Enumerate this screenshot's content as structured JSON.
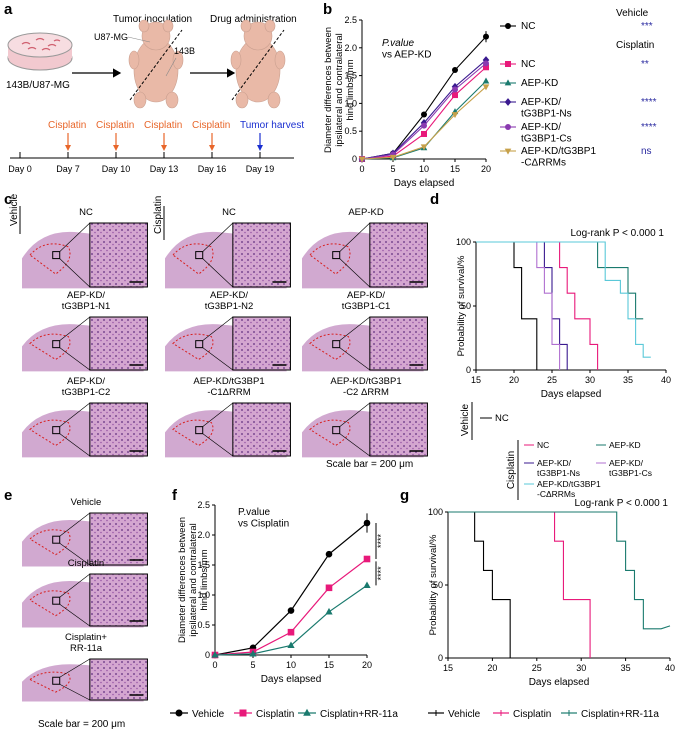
{
  "panel_letters": [
    "a",
    "b",
    "c",
    "d",
    "e",
    "f",
    "g"
  ],
  "colors": {
    "nc": "#000000",
    "cisplatin_nc": "#e8197a",
    "aepkd": "#1a7a6e",
    "ns": "#3a1a8f",
    "cs": "#8a3ab0",
    "crrm": "#c7a14a",
    "tumor_outline": "#d82020",
    "cisplatin_arrow": "#e8662a",
    "harvest_arrow": "#1a2fd0",
    "sig_blue": "#2a2aa0",
    "tissue": "#c28cc0"
  },
  "panel_a": {
    "dish_label": "143B/U87-MG",
    "inoculation_title": "Tumor inoculation",
    "drug_title": "Drug administration",
    "u87_label": "U87-MG",
    "b143_label": "143B",
    "cisplatin_label": "Cisplatin",
    "harvest_label": "Tumor harvest",
    "days": [
      "Day 0",
      "Day 7",
      "Day 10",
      "Day 13",
      "Day 16",
      "Day 19"
    ]
  },
  "panel_c": {
    "vehicle_label": "Vehicle",
    "cisplatin_label": "Cisplatin",
    "tiles": [
      "NC",
      "NC",
      "AEP-KD",
      "AEP-KD/\ntG3BP1-N1",
      "AEP-KD/\ntG3BP1-N2",
      "AEP-KD/\ntG3BP1-C1",
      "AEP-KD/\ntG3BP1-C2",
      "AEP-KD/tG3BP1\n-C1ΔRRM",
      "AEP-KD/tG3BP1\n-C2 ΔRRM"
    ],
    "scale_bar": "Scale bar = 200 μm"
  },
  "panel_e": {
    "tiles": [
      "Vehicle",
      "Cisplatin",
      "Cisplatin+\nRR-11a"
    ],
    "scale_bar": "Scale bar = 200 μm"
  },
  "chart_data": [
    {
      "id": "b",
      "type": "line",
      "xlabel": "Days elapsed",
      "ylabel": "Diameter differences between\nipsilateral and contralateral\nhind limbs/mm",
      "annotation": "P.value\nvs AEP-KD",
      "xlim": [
        0,
        20
      ],
      "ylim": [
        0,
        2.5
      ],
      "xticks": [
        "0",
        "5",
        "10",
        "15",
        "20"
      ],
      "yticks": [
        "0",
        "0.5",
        "1.0",
        "1.5",
        "2.0",
        "2.5"
      ],
      "x": [
        0,
        5,
        10,
        15,
        20
      ],
      "legend_group_vehicle": "Vehicle",
      "legend_group_cisplatin": "Cisplatin",
      "series": [
        {
          "name": "NC",
          "group": "Vehicle",
          "values": [
            0,
            0.1,
            0.8,
            1.6,
            2.2
          ],
          "sig": "***",
          "marker": "circle",
          "color": "#000000"
        },
        {
          "name": "NC",
          "group": "Cisplatin",
          "values": [
            0,
            0.05,
            0.45,
            1.15,
            1.65
          ],
          "sig": "**",
          "marker": "square",
          "color": "#e8197a"
        },
        {
          "name": "AEP-KD",
          "group": "Cisplatin",
          "values": [
            0,
            0.02,
            0.2,
            0.85,
            1.4
          ],
          "sig": "",
          "marker": "triangle",
          "color": "#1a7a6e"
        },
        {
          "name": "AEP-KD/\ntG3BP1-Ns",
          "group": "Cisplatin",
          "values": [
            0,
            0.1,
            0.65,
            1.3,
            1.78
          ],
          "sig": "****",
          "marker": "diamond",
          "color": "#3a1a8f"
        },
        {
          "name": "AEP-KD/\ntG3BP1-Cs",
          "group": "Cisplatin",
          "values": [
            0,
            0.08,
            0.6,
            1.25,
            1.72
          ],
          "sig": "****",
          "marker": "circle",
          "color": "#8a3ab0"
        },
        {
          "name": "AEP-KD/tG3BP1\n-CΔRRMs",
          "group": "Cisplatin",
          "values": [
            0,
            0.03,
            0.22,
            0.8,
            1.3
          ],
          "sig": "ns",
          "marker": "triangle-down",
          "color": "#c7a14a"
        }
      ]
    },
    {
      "id": "d",
      "type": "line",
      "xlabel": "Days elapsed",
      "ylabel": "Probability of survival/%",
      "annotation": "Log-rank P < 0.000 1",
      "xlim": [
        15,
        40
      ],
      "ylim": [
        0,
        100
      ],
      "xticks": [
        "15",
        "20",
        "25",
        "30",
        "35",
        "40"
      ],
      "yticks": [
        "0",
        "50",
        "100"
      ],
      "vehicle_label": "Vehicle",
      "cisplatin_label": "Cisplatin",
      "series": [
        {
          "name": "NC",
          "group": "Vehicle",
          "color": "#000000",
          "steps": [
            [
              15,
              100
            ],
            [
              20,
              100
            ],
            [
              20,
              80
            ],
            [
              21,
              80
            ],
            [
              21,
              40
            ],
            [
              23,
              40
            ],
            [
              23,
              0
            ],
            [
              25,
              0
            ]
          ]
        },
        {
          "name": "NC",
          "group": "Cisplatin",
          "color": "#e8197a",
          "steps": [
            [
              15,
              100
            ],
            [
              26,
              100
            ],
            [
              26,
              80
            ],
            [
              27,
              80
            ],
            [
              27,
              60
            ],
            [
              28,
              60
            ],
            [
              28,
              40
            ],
            [
              30,
              40
            ],
            [
              30,
              20
            ],
            [
              31,
              20
            ],
            [
              31,
              0
            ]
          ]
        },
        {
          "name": "AEP-KD",
          "group": "Cisplatin",
          "color": "#1a7a6e",
          "steps": [
            [
              15,
              100
            ],
            [
              31,
              100
            ],
            [
              31,
              80
            ],
            [
              35,
              80
            ],
            [
              35,
              60
            ],
            [
              36,
              60
            ],
            [
              36,
              40
            ],
            [
              37,
              40
            ]
          ]
        },
        {
          "name": "AEP-KD/\ntG3BP1-Ns",
          "group": "Cisplatin",
          "color": "#3a1a8f",
          "steps": [
            [
              15,
              100
            ],
            [
              24,
              100
            ],
            [
              24,
              80
            ],
            [
              25,
              80
            ],
            [
              25,
              40
            ],
            [
              26,
              40
            ],
            [
              26,
              20
            ],
            [
              27,
              20
            ],
            [
              27,
              0
            ]
          ]
        },
        {
          "name": "AEP-KD/\ntG3BP1-Cs",
          "group": "Cisplatin",
          "color": "#b070d0",
          "steps": [
            [
              15,
              100
            ],
            [
              23,
              100
            ],
            [
              23,
              80
            ],
            [
              24,
              80
            ],
            [
              24,
              60
            ],
            [
              25,
              60
            ],
            [
              25,
              20
            ],
            [
              26,
              20
            ],
            [
              26,
              0
            ]
          ]
        },
        {
          "name": "AEP-KD/tG3BP1\n-CΔRRMs",
          "group": "Cisplatin",
          "color": "#5ac8d8",
          "steps": [
            [
              15,
              100
            ],
            [
              32,
              100
            ],
            [
              32,
              70
            ],
            [
              34,
              70
            ],
            [
              34,
              60
            ],
            [
              35,
              60
            ],
            [
              35,
              40
            ],
            [
              36,
              40
            ],
            [
              36,
              20
            ],
            [
              37,
              20
            ],
            [
              37,
              10
            ],
            [
              38,
              10
            ]
          ]
        }
      ]
    },
    {
      "id": "f",
      "type": "line",
      "xlabel": "Days elapsed",
      "ylabel": "Diameter differences between\nipsilateral and contralateral\nhind limbs/mm",
      "annotation": "P.value\nvs Cisplatin",
      "xlim": [
        0,
        20
      ],
      "ylim": [
        0,
        2.5
      ],
      "xticks": [
        "0",
        "5",
        "10",
        "15",
        "20"
      ],
      "yticks": [
        "0",
        "0.5",
        "1.0",
        "1.5",
        "2.0",
        "2.5"
      ],
      "x": [
        0,
        5,
        10,
        15,
        20
      ],
      "sig_top": "****",
      "sig_bottom": "****",
      "series": [
        {
          "name": "Vehicle",
          "values": [
            0,
            0.12,
            0.74,
            1.68,
            2.2
          ],
          "marker": "circle",
          "color": "#000000"
        },
        {
          "name": "Cisplatin",
          "values": [
            0,
            0.05,
            0.38,
            1.12,
            1.6
          ],
          "marker": "square",
          "color": "#e8197a"
        },
        {
          "name": "Cisplatin+RR-11a",
          "values": [
            0,
            0.02,
            0.16,
            0.72,
            1.16
          ],
          "marker": "triangle",
          "color": "#1a7a6e"
        }
      ]
    },
    {
      "id": "g",
      "type": "line",
      "xlabel": "Days elapsed",
      "ylabel": "Probability of survival/%",
      "annotation": "Log-rank P < 0.000 1",
      "xlim": [
        15,
        40
      ],
      "ylim": [
        0,
        100
      ],
      "xticks": [
        "15",
        "20",
        "25",
        "30",
        "35",
        "40"
      ],
      "yticks": [
        "0",
        "50",
        "100"
      ],
      "series": [
        {
          "name": "Vehicle",
          "color": "#000000",
          "steps": [
            [
              15,
              100
            ],
            [
              18,
              100
            ],
            [
              18,
              80
            ],
            [
              19,
              80
            ],
            [
              19,
              60
            ],
            [
              20,
              60
            ],
            [
              20,
              40
            ],
            [
              22,
              40
            ],
            [
              22,
              0
            ]
          ]
        },
        {
          "name": "Cisplatin",
          "color": "#e8197a",
          "steps": [
            [
              15,
              100
            ],
            [
              27,
              100
            ],
            [
              27,
              80
            ],
            [
              28,
              80
            ],
            [
              28,
              40
            ],
            [
              31,
              40
            ],
            [
              31,
              0
            ]
          ]
        },
        {
          "name": "Cisplatin+RR-11a",
          "color": "#1a7a6e",
          "steps": [
            [
              15,
              100
            ],
            [
              34,
              100
            ],
            [
              34,
              80
            ],
            [
              35,
              80
            ],
            [
              35,
              60
            ],
            [
              36,
              60
            ],
            [
              36,
              40
            ],
            [
              37,
              40
            ],
            [
              37,
              20
            ],
            [
              39,
              20
            ],
            [
              39,
              20
            ],
            [
              40,
              22
            ]
          ]
        }
      ]
    }
  ]
}
